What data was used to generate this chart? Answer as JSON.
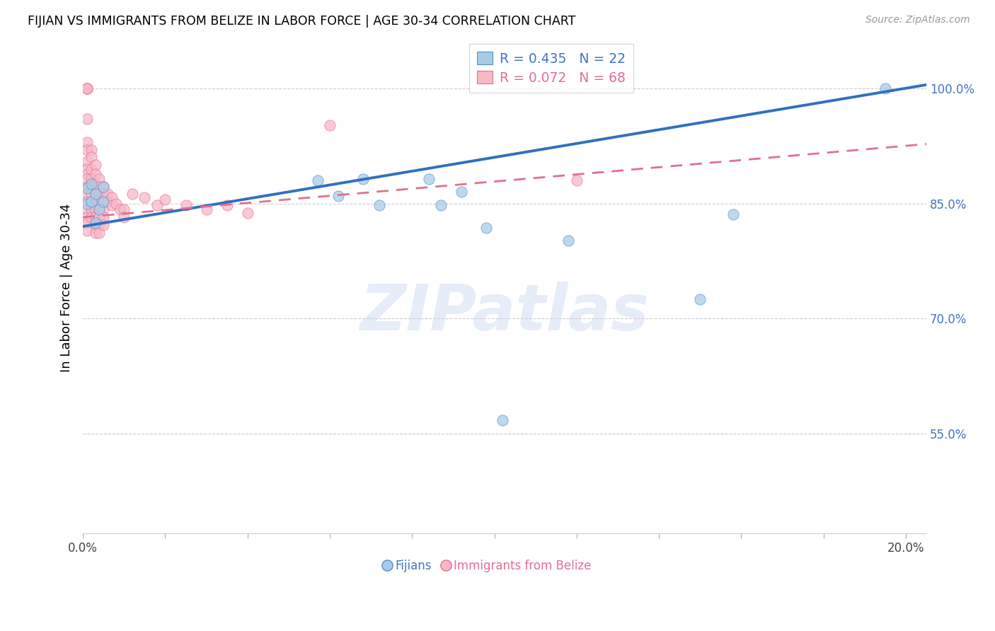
{
  "title": "FIJIAN VS IMMIGRANTS FROM BELIZE IN LABOR FORCE | AGE 30-34 CORRELATION CHART",
  "source": "Source: ZipAtlas.com",
  "ylabel": "In Labor Force | Age 30-34",
  "xlim": [
    0.0,
    0.205
  ],
  "ylim": [
    0.42,
    1.06
  ],
  "ytick_positions": [
    0.55,
    0.7,
    0.85,
    1.0
  ],
  "ytick_labels": [
    "55.0%",
    "70.0%",
    "85.0%",
    "100.0%"
  ],
  "xtick_positions": [
    0.0,
    0.02,
    0.04,
    0.06,
    0.08,
    0.1,
    0.12,
    0.14,
    0.16,
    0.18,
    0.2
  ],
  "blue_r": 0.435,
  "blue_n": 22,
  "pink_r": 0.072,
  "pink_n": 68,
  "blue_scatter_color": "#a8cce8",
  "blue_edge_color": "#5590c8",
  "blue_line_color": "#3070c0",
  "pink_scatter_color": "#f8b8c8",
  "pink_edge_color": "#e07090",
  "pink_line_color": "#e07090",
  "legend_text_blue": "#4472c4",
  "legend_text_pink": "#e07090",
  "ytick_color": "#4472c4",
  "watermark": "ZIPatlas",
  "fijian_x": [
    0.001,
    0.001,
    0.002,
    0.002,
    0.003,
    0.003,
    0.004,
    0.005,
    0.005,
    0.057,
    0.062,
    0.068,
    0.072,
    0.084,
    0.087,
    0.092,
    0.098,
    0.102,
    0.118,
    0.15,
    0.158,
    0.195
  ],
  "fijian_y": [
    0.87,
    0.85,
    0.875,
    0.852,
    0.862,
    0.825,
    0.842,
    0.872,
    0.852,
    0.88,
    0.86,
    0.882,
    0.848,
    0.882,
    0.848,
    0.865,
    0.818,
    0.568,
    0.802,
    0.725,
    0.836,
    1.0
  ],
  "belize_x": [
    0.001,
    0.001,
    0.001,
    0.001,
    0.001,
    0.001,
    0.001,
    0.001,
    0.001,
    0.001,
    0.001,
    0.001,
    0.001,
    0.001,
    0.001,
    0.001,
    0.001,
    0.001,
    0.002,
    0.002,
    0.002,
    0.002,
    0.002,
    0.002,
    0.002,
    0.002,
    0.002,
    0.003,
    0.003,
    0.003,
    0.003,
    0.003,
    0.003,
    0.003,
    0.003,
    0.003,
    0.004,
    0.004,
    0.004,
    0.004,
    0.004,
    0.004,
    0.004,
    0.004,
    0.005,
    0.005,
    0.005,
    0.005,
    0.005,
    0.005,
    0.006,
    0.006,
    0.007,
    0.007,
    0.008,
    0.009,
    0.01,
    0.01,
    0.012,
    0.015,
    0.018,
    0.02,
    0.025,
    0.03,
    0.035,
    0.04,
    0.06,
    0.12
  ],
  "belize_y": [
    1.0,
    1.0,
    1.0,
    1.0,
    0.96,
    0.93,
    0.92,
    0.905,
    0.895,
    0.888,
    0.882,
    0.872,
    0.862,
    0.852,
    0.842,
    0.832,
    0.825,
    0.815,
    0.92,
    0.91,
    0.895,
    0.882,
    0.872,
    0.862,
    0.852,
    0.842,
    0.832,
    0.9,
    0.888,
    0.875,
    0.862,
    0.852,
    0.842,
    0.832,
    0.822,
    0.812,
    0.882,
    0.872,
    0.862,
    0.852,
    0.842,
    0.832,
    0.822,
    0.812,
    0.872,
    0.862,
    0.852,
    0.842,
    0.832,
    0.822,
    0.862,
    0.852,
    0.858,
    0.848,
    0.85,
    0.842,
    0.842,
    0.832,
    0.862,
    0.858,
    0.848,
    0.855,
    0.848,
    0.842,
    0.848,
    0.838,
    0.952,
    0.88
  ]
}
